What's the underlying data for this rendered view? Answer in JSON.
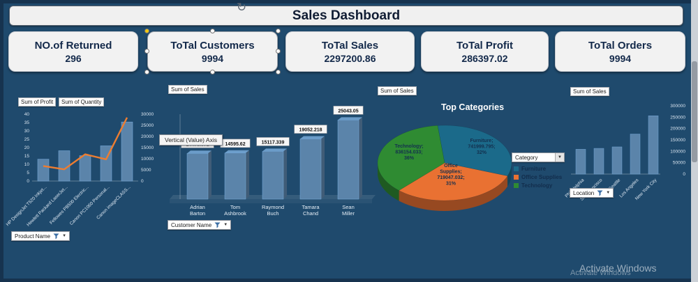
{
  "header": {
    "title": "Sales Dashboard"
  },
  "icons": {
    "refresh": "↻"
  },
  "kpis": [
    {
      "label": "NO.of Returned",
      "value": "296"
    },
    {
      "label": "ToTal Customers",
      "value": "9994"
    },
    {
      "label": "ToTal Sales",
      "value": "2297200.86"
    },
    {
      "label": "ToTal Profit",
      "value": "286397.02"
    },
    {
      "label": "ToTal Orders",
      "value": "9994"
    }
  ],
  "tooltip": {
    "text": "Vertical (Value) Axis"
  },
  "watermark": {
    "line1": "Activate Windows",
    "line2": "Activate Windows"
  },
  "colors": {
    "background": "#1f4a6d",
    "bar": "#5b84aa",
    "line": "#ed7d31",
    "furniture": "#1b6a8a",
    "office_supplies": "#e97132",
    "technology": "#2f8b32"
  },
  "chart_data": [
    {
      "id": "product-combo",
      "type": "bar",
      "legend": [
        "Sum of Profit",
        "Sum of Quantity"
      ],
      "categories": [
        "HP DesignJet T520 Inkjet...",
        "Hewlett Packard LaserJet...",
        "Fellowes PB500 Electric...",
        "Canon PC1060 Personal...",
        "Canon imageCLASS..."
      ],
      "series": [
        {
          "name": "Sum of Quantity",
          "type": "bar",
          "axis": "right",
          "values": [
            9800,
            13600,
            11400,
            15800,
            26500
          ]
        },
        {
          "name": "Sum of Profit",
          "type": "line",
          "axis": "left",
          "values": [
            9,
            7,
            16,
            13,
            38
          ]
        }
      ],
      "left_axis": {
        "min": 0,
        "max": 40,
        "step": 5
      },
      "right_axis": {
        "min": 0,
        "max": 30000,
        "step": 5000
      },
      "filter_label": "Product Name"
    },
    {
      "id": "customer-sales",
      "type": "bar",
      "title": "Sum of Sales",
      "categories": [
        "Adrian Barton",
        "Tom Ashbrook",
        "Raymond Buch",
        "Tamara Chand",
        "Sean Miller"
      ],
      "values": [
        14473.571,
        14595.62,
        15117.339,
        19052.218,
        25043.05
      ],
      "data_labels": [
        "14473.571",
        "14595.62",
        "15117.339",
        "19052.218",
        "25043.05"
      ],
      "ylim": [
        0,
        26000
      ],
      "filter_label": "Customer Name"
    },
    {
      "id": "top-categories-pie",
      "type": "pie",
      "title": "Top Categories",
      "axis_label": "Sum of Sales",
      "slices": [
        {
          "name": "Furniture",
          "value": 741999.795,
          "label": "Furniture; 741999.795; 32%",
          "color": "#1b6a8a"
        },
        {
          "name": "Office Supplies",
          "value": 719047.032,
          "label": "Office Supplies; 719047.032; 31%",
          "color": "#e97132"
        },
        {
          "name": "Technology",
          "value": 836154.033,
          "label": "Technology; 836154.033; 36%",
          "color": "#2f8b32"
        }
      ],
      "legend_title": "Category",
      "filter_label": "Category"
    },
    {
      "id": "city-sales",
      "type": "bar",
      "title": "Sum of Sales",
      "categories": [
        "Philadelphia",
        "San Francisco",
        "Seattle",
        "Los Angeles",
        "New York City"
      ],
      "values": [
        109000,
        113000,
        119500,
        175900,
        256400
      ],
      "ylim": [
        0,
        300000
      ],
      "step": 50000,
      "filter_label": "Location"
    }
  ]
}
